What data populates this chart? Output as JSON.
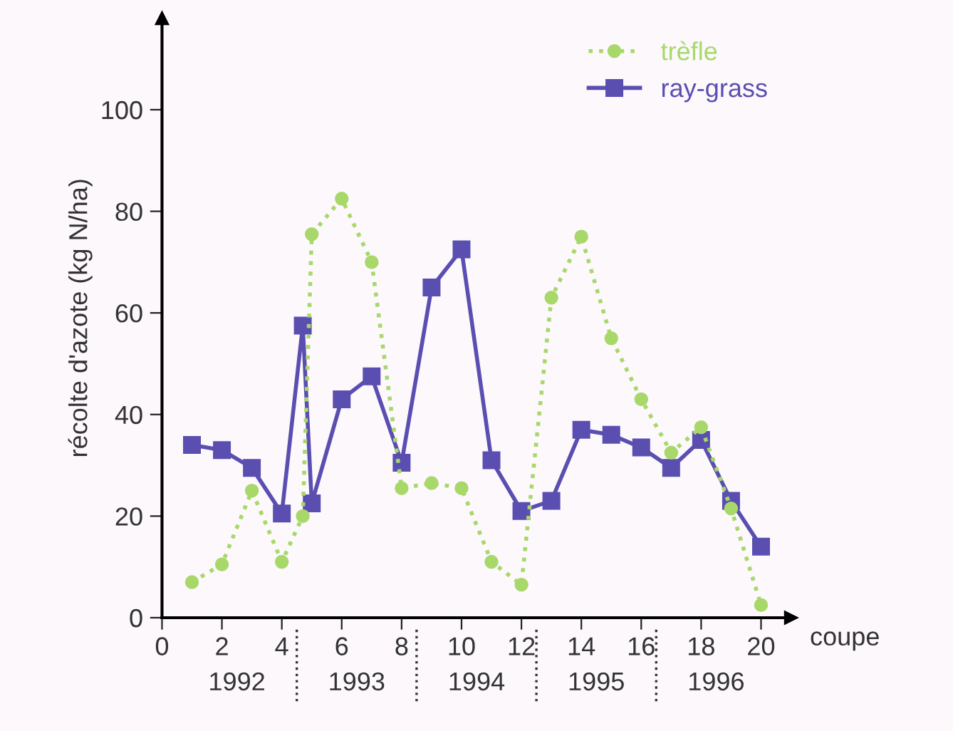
{
  "chart_data": {
    "type": "line",
    "ylabel": "récolte d'azote (kg N/ha)",
    "xlabel": "coupe",
    "xlim": [
      0,
      21
    ],
    "ylim": [
      0,
      118
    ],
    "xticks": [
      0,
      2,
      4,
      6,
      8,
      10,
      12,
      14,
      16,
      18,
      20
    ],
    "yticks": [
      0,
      20,
      40,
      60,
      80,
      100
    ],
    "grid": false,
    "legend": "top right",
    "annotations": [
      "1992",
      "1993",
      "1994",
      "1995",
      "1996"
    ],
    "series": [
      {
        "name": "trèfle",
        "color": "#a8d86a",
        "marker": "circle",
        "line_style": "dotted",
        "x": [
          1,
          2,
          3,
          4,
          4.7,
          5,
          6,
          7,
          8,
          9,
          10,
          11,
          12,
          13,
          14,
          15,
          16,
          17,
          18,
          19,
          20
        ],
        "values": [
          7,
          10.5,
          25,
          11,
          20,
          75.5,
          82.5,
          70,
          25.5,
          26.5,
          25.5,
          11,
          6.5,
          63,
          75,
          55,
          43,
          32.5,
          37.5,
          21.5,
          2.5
        ]
      },
      {
        "name": "ray-grass",
        "color": "#5a4fb0",
        "marker": "square",
        "line_style": "solid",
        "x": [
          1,
          2,
          3,
          4,
          4.7,
          5,
          6,
          7,
          8,
          9,
          10,
          11,
          12,
          13,
          14,
          15,
          16,
          17,
          18,
          19,
          20
        ],
        "values": [
          34,
          33,
          29.5,
          20.5,
          57.5,
          22.5,
          43,
          47.5,
          30.5,
          65,
          72.5,
          31,
          21,
          23,
          37,
          36,
          33.5,
          29.5,
          35,
          23,
          14
        ]
      }
    ]
  }
}
